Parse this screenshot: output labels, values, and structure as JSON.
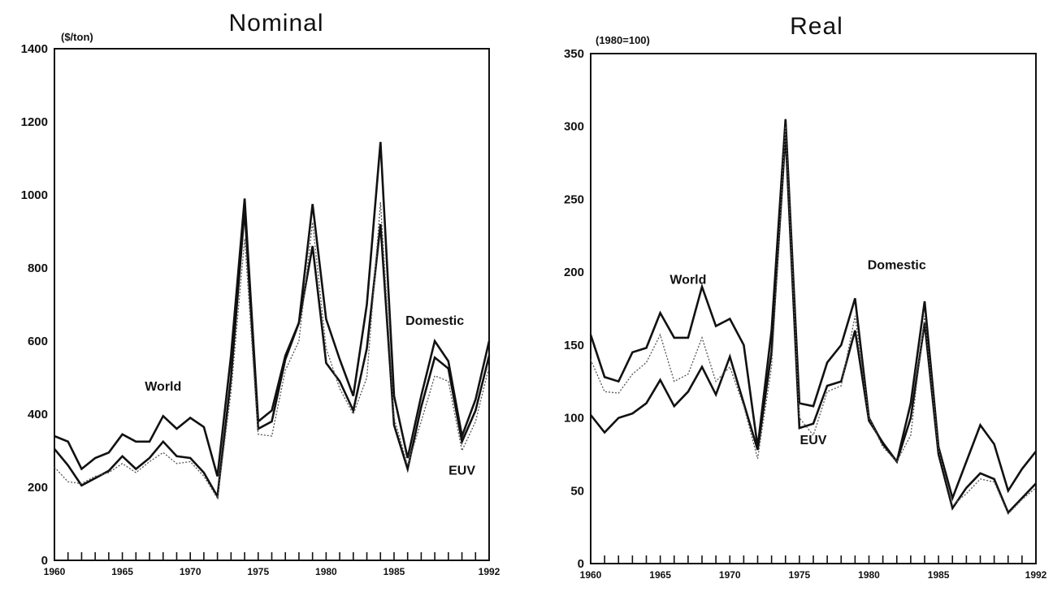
{
  "chart_data": [
    {
      "type": "line",
      "title": "Nominal",
      "ylabel": "($/ton)",
      "xlabel": "",
      "ylim": [
        0,
        1400
      ],
      "yticks": [
        0,
        200,
        400,
        600,
        800,
        1000,
        1200,
        1400
      ],
      "xlim": [
        1960,
        1992
      ],
      "xticks": [
        1960,
        1965,
        1970,
        1975,
        1980,
        1985,
        1992
      ],
      "grid": false,
      "series": [
        {
          "name": "World",
          "style": "thick",
          "x": [
            1960,
            1961,
            1962,
            1963,
            1964,
            1965,
            1966,
            1967,
            1968,
            1969,
            1970,
            1971,
            1972,
            1973,
            1974,
            1975,
            1976,
            1977,
            1978,
            1979,
            1980,
            1981,
            1982,
            1983,
            1984,
            1985,
            1986,
            1987,
            1988,
            1989,
            1990,
            1991,
            1992
          ],
          "y": [
            340,
            325,
            250,
            280,
            295,
            345,
            325,
            325,
            395,
            360,
            390,
            365,
            230,
            560,
            990,
            380,
            410,
            560,
            650,
            975,
            660,
            550,
            450,
            700,
            1145,
            450,
            280,
            450,
            600,
            545,
            340,
            440,
            600
          ]
        },
        {
          "name": "Domestic",
          "style": "thick",
          "x": [
            1960,
            1961,
            1962,
            1963,
            1964,
            1965,
            1966,
            1967,
            1968,
            1969,
            1970,
            1971,
            1972,
            1973,
            1974,
            1975,
            1976,
            1977,
            1978,
            1979,
            1980,
            1981,
            1982,
            1983,
            1984,
            1985,
            1986,
            1987,
            1988,
            1989,
            1990,
            1991,
            1992
          ],
          "y": [
            305,
            260,
            205,
            225,
            245,
            285,
            250,
            280,
            325,
            285,
            280,
            240,
            175,
            500,
            960,
            360,
            380,
            550,
            650,
            860,
            540,
            490,
            410,
            580,
            920,
            370,
            250,
            420,
            555,
            525,
            325,
            410,
            560
          ]
        },
        {
          "name": "EUV",
          "style": "dotted",
          "x": [
            1960,
            1961,
            1962,
            1963,
            1964,
            1965,
            1966,
            1967,
            1968,
            1969,
            1970,
            1971,
            1972,
            1973,
            1974,
            1975,
            1976,
            1977,
            1978,
            1979,
            1980,
            1981,
            1982,
            1983,
            1984,
            1985,
            1986,
            1987,
            1988,
            1989,
            1990,
            1991,
            1992
          ],
          "y": [
            255,
            215,
            210,
            230,
            240,
            265,
            240,
            270,
            295,
            265,
            270,
            230,
            170,
            460,
            880,
            345,
            340,
            520,
            600,
            925,
            580,
            470,
            400,
            500,
            980,
            390,
            260,
            380,
            505,
            490,
            300,
            380,
            530
          ]
        }
      ],
      "annotations": [
        {
          "text": "World",
          "x": 1968,
          "y": 465
        },
        {
          "text": "Domestic",
          "x": 1988,
          "y": 645
        },
        {
          "text": "EUV",
          "x": 1990,
          "y": 235
        }
      ]
    },
    {
      "type": "line",
      "title": "Real",
      "ylabel": "(1980=100)",
      "xlabel": "",
      "ylim": [
        0,
        350
      ],
      "yticks": [
        0,
        50,
        100,
        150,
        200,
        250,
        300,
        350
      ],
      "xlim": [
        1960,
        1992
      ],
      "xticks": [
        1960,
        1965,
        1970,
        1975,
        1980,
        1985,
        1992
      ],
      "grid": false,
      "series": [
        {
          "name": "World",
          "style": "thick",
          "x": [
            1960,
            1961,
            1962,
            1963,
            1964,
            1965,
            1966,
            1967,
            1968,
            1969,
            1970,
            1971,
            1972,
            1973,
            1974,
            1975,
            1976,
            1977,
            1978,
            1979,
            1980,
            1981,
            1982,
            1983,
            1984,
            1985,
            1986,
            1987,
            1988,
            1989,
            1990,
            1991,
            1992
          ],
          "y": [
            157,
            128,
            125,
            145,
            148,
            172,
            155,
            155,
            190,
            163,
            168,
            150,
            80,
            160,
            305,
            110,
            108,
            138,
            150,
            182,
            100,
            82,
            70,
            110,
            180,
            80,
            45,
            70,
            95,
            82,
            50,
            65,
            77
          ]
        },
        {
          "name": "Domestic",
          "style": "thick",
          "x": [
            1960,
            1961,
            1962,
            1963,
            1964,
            1965,
            1966,
            1967,
            1968,
            1969,
            1970,
            1971,
            1972,
            1973,
            1974,
            1975,
            1976,
            1977,
            1978,
            1979,
            1980,
            1981,
            1982,
            1983,
            1984,
            1985,
            1986,
            1987,
            1988,
            1989,
            1990,
            1991,
            1992
          ],
          "y": [
            102,
            90,
            100,
            103,
            110,
            126,
            108,
            118,
            135,
            116,
            142,
            110,
            78,
            145,
            295,
            93,
            96,
            122,
            125,
            160,
            98,
            83,
            70,
            100,
            165,
            75,
            38,
            52,
            62,
            58,
            35,
            45,
            55
          ]
        },
        {
          "name": "EUV",
          "style": "dotted",
          "x": [
            1960,
            1961,
            1962,
            1963,
            1964,
            1965,
            1966,
            1967,
            1968,
            1969,
            1970,
            1971,
            1972,
            1973,
            1974,
            1975,
            1976,
            1977,
            1978,
            1979,
            1980,
            1981,
            1982,
            1983,
            1984,
            1985,
            1986,
            1987,
            1988,
            1989,
            1990,
            1991,
            1992
          ],
          "y": [
            140,
            118,
            117,
            130,
            138,
            157,
            125,
            130,
            155,
            125,
            135,
            108,
            72,
            135,
            300,
            100,
            88,
            118,
            122,
            170,
            100,
            80,
            70,
            88,
            170,
            78,
            40,
            48,
            58,
            56,
            34,
            44,
            52
          ]
        }
      ],
      "annotations": [
        {
          "text": "World",
          "x": 1967,
          "y": 192
        },
        {
          "text": "Domestic",
          "x": 1982,
          "y": 202
        },
        {
          "text": "EUV",
          "x": 1976,
          "y": 82
        }
      ]
    }
  ]
}
